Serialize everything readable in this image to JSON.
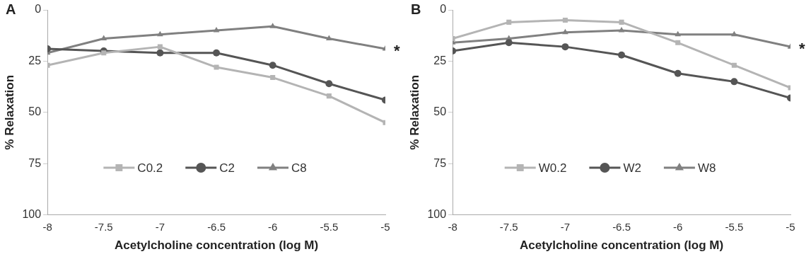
{
  "chart_data": [
    {
      "type": "line",
      "title": "A",
      "xlabel": "Acetylcholine concentration (log M)",
      "ylabel": "% Relaxation",
      "x": [
        -8,
        -7.5,
        -7,
        -6.5,
        -6,
        -5.5,
        -5
      ],
      "xlim": [
        -8,
        -5
      ],
      "xticks": [
        -8,
        -7.5,
        -7,
        -6.5,
        -6,
        -5.5,
        -5
      ],
      "ylim": [
        100,
        0
      ],
      "yticks": [
        0,
        25,
        50,
        75,
        100
      ],
      "legend": "bottom",
      "grid": false,
      "annotations": [
        {
          "text": "*",
          "x": -5,
          "y": 19
        }
      ],
      "series": [
        {
          "name": "C0.2",
          "color": "#b4b4b4",
          "marker": "square",
          "values": [
            27,
            21,
            18,
            28,
            33,
            42,
            55
          ]
        },
        {
          "name": "C2",
          "color": "#555555",
          "marker": "circle",
          "values": [
            19,
            20,
            21,
            21,
            27,
            36,
            44
          ]
        },
        {
          "name": "C8",
          "color": "#808080",
          "marker": "triangle",
          "values": [
            21,
            14,
            12,
            10,
            8,
            14,
            19
          ]
        }
      ]
    },
    {
      "type": "line",
      "title": "B",
      "xlabel": "Acetylcholine concentration (log M)",
      "ylabel": "% Relaxation",
      "x": [
        -8,
        -7.5,
        -7,
        -6.5,
        -6,
        -5.5,
        -5
      ],
      "xlim": [
        -8,
        -5
      ],
      "xticks": [
        -8,
        -7.5,
        -7,
        -6.5,
        -6,
        -5.5,
        -5
      ],
      "ylim": [
        100,
        0
      ],
      "yticks": [
        0,
        25,
        50,
        75,
        100
      ],
      "legend": "bottom",
      "grid": false,
      "annotations": [
        {
          "text": "*",
          "x": -5,
          "y": 18
        }
      ],
      "series": [
        {
          "name": "W0.2",
          "color": "#b4b4b4",
          "marker": "square",
          "values": [
            14,
            6,
            5,
            6,
            16,
            27,
            38
          ]
        },
        {
          "name": "W2",
          "color": "#555555",
          "marker": "circle",
          "values": [
            20,
            16,
            18,
            22,
            31,
            35,
            43
          ]
        },
        {
          "name": "W8",
          "color": "#808080",
          "marker": "triangle",
          "values": [
            16,
            14,
            11,
            10,
            12,
            12,
            18
          ]
        }
      ]
    }
  ]
}
